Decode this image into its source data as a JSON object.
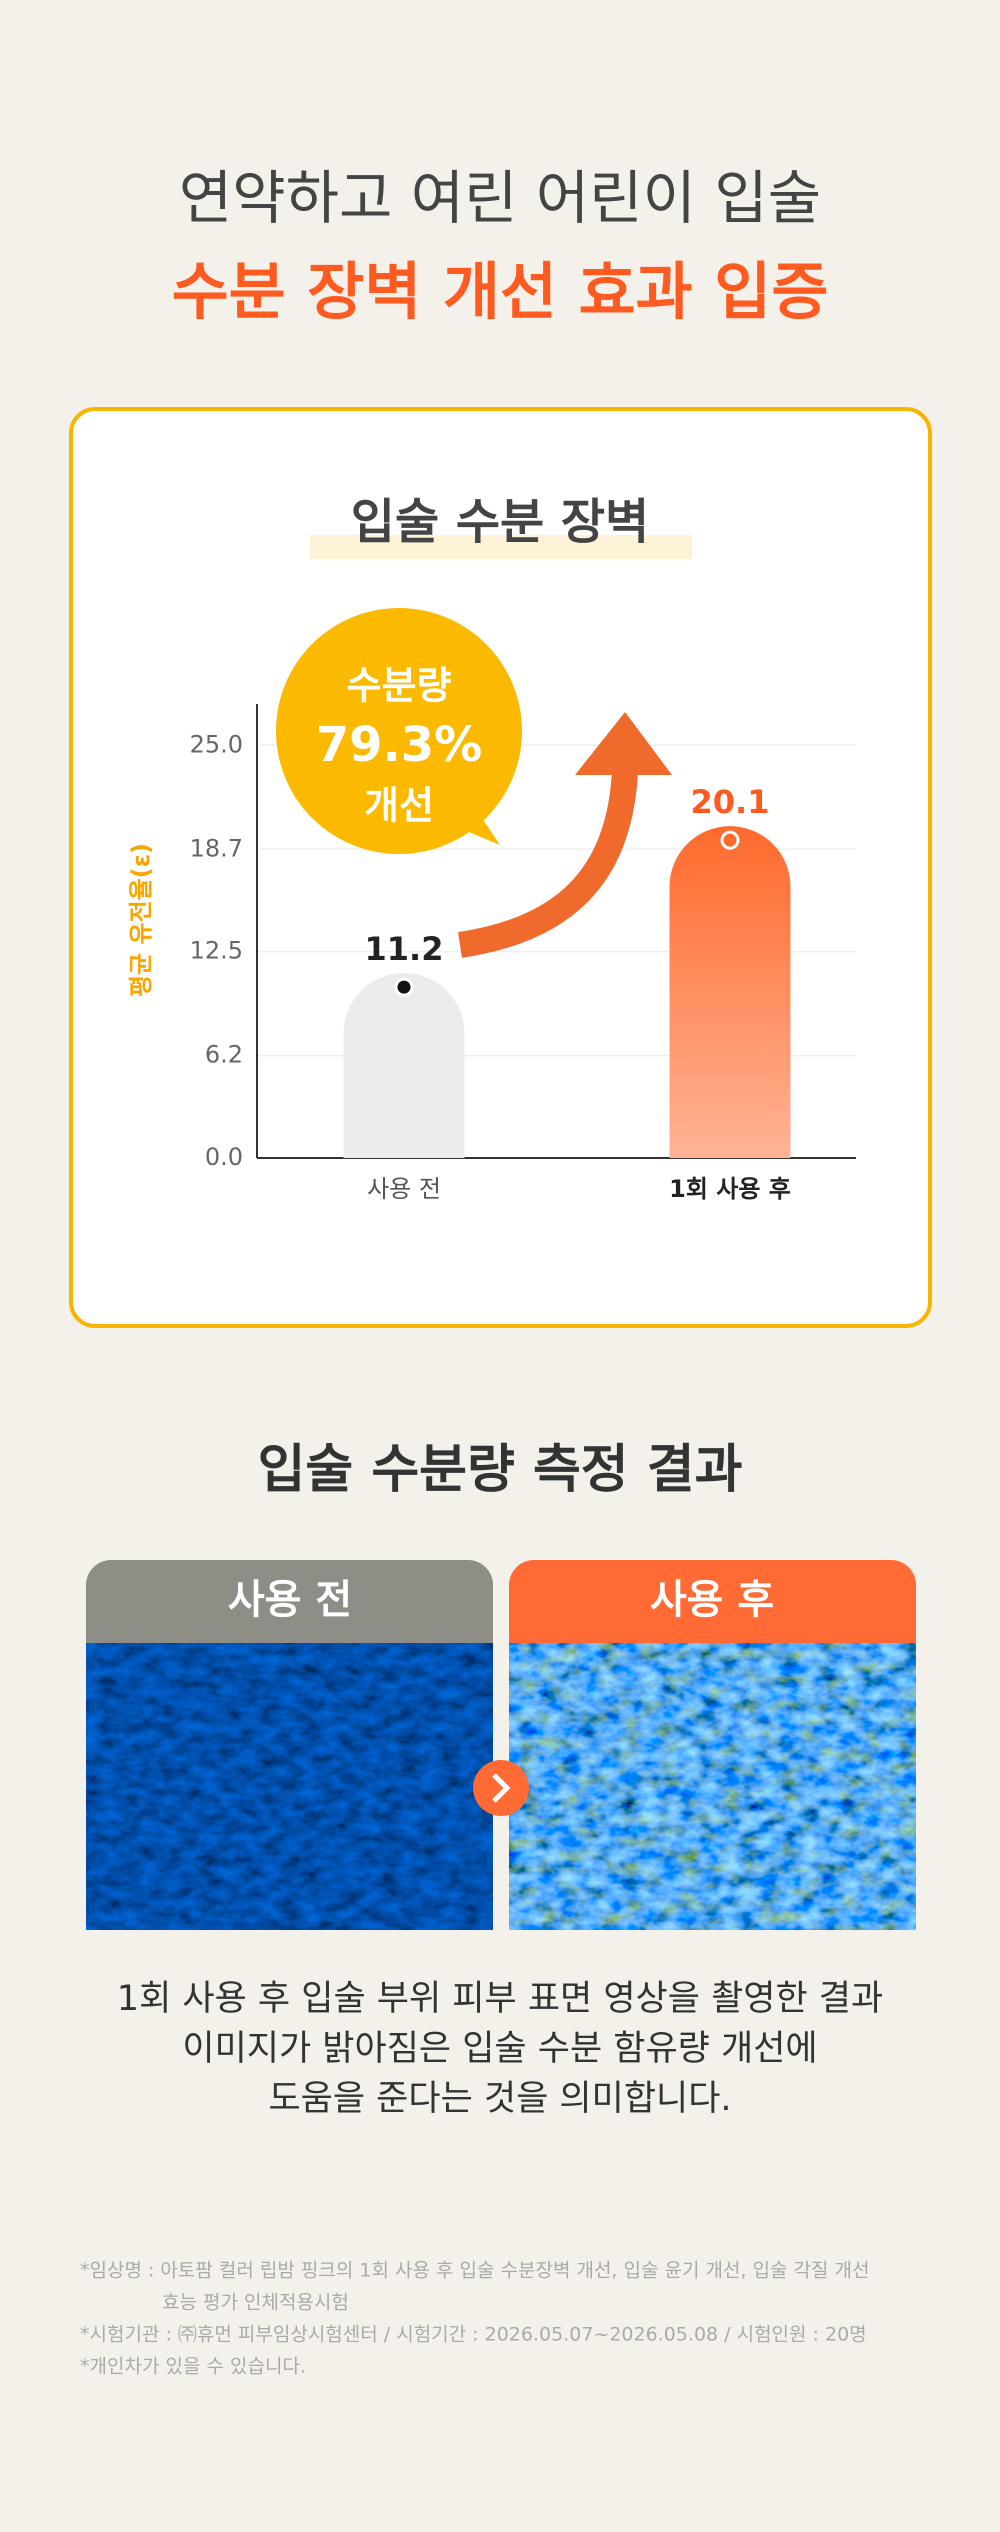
{
  "header": {
    "line1": "연약하고 여린 어린이 입술",
    "line2": "수분 장벽 개선 효과 입증"
  },
  "chart_data": {
    "type": "bar",
    "title": "입술 수분 장벽",
    "y_label": "평균 유전율(ε)",
    "categories": [
      "사용 전",
      "1회 사용 후"
    ],
    "values": [
      11.2,
      20.1
    ],
    "colors": [
      "#ebebeb",
      "#ff6a2c"
    ],
    "ylim": [
      0,
      27.5
    ],
    "yticks": [
      {
        "value": 0,
        "label": "0.0"
      },
      {
        "value": 6.2,
        "label": "6.2"
      },
      {
        "value": 12.5,
        "label": "12.5"
      },
      {
        "value": 18.7,
        "label": "18.7"
      },
      {
        "value": 25,
        "label": "25.0"
      }
    ],
    "grid": true,
    "annotation": [
      "수분량",
      "79.3%",
      "개선"
    ]
  },
  "result": {
    "title": "입술 수분량 측정 결과",
    "before": "사용 전",
    "after": "사용 후",
    "description": [
      "1회 사용 후 입술 부위 피부 표면 영상을 촬영한 결과",
      "이미지가 밝아짐은 입술 수분 함유량 개선에",
      "도움을 준다는 것을 의미합니다."
    ]
  },
  "notes": [
    "*임상명 : 아토팜 컬러 립밤 핑크의 1회 사용 후 입술 수분장벽 개선, 입술 윤기 개선, 입술 각질 개선",
    "효능 평가 인체적용시험",
    "*시험기관 : ㈜휴먼 피부임상시험센터 / 시험기간 : 2026.05.07~2026.05.08 / 시험인원 : 20명",
    "*개인차가 있을 수 있습니다."
  ]
}
